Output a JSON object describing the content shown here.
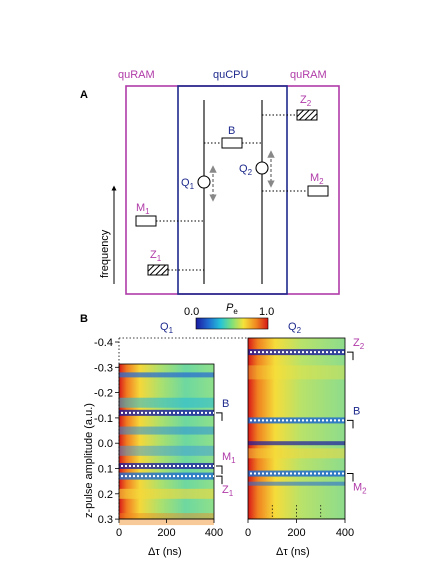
{
  "panel_a": {
    "label": "A",
    "header_left": "quRAM",
    "header_center": "quCPU",
    "header_right": "quRAM",
    "axis_label": "frequency",
    "elements": {
      "z2": "Z",
      "z2_sub": "2",
      "b": "B",
      "q1": "Q",
      "q1_sub": "1",
      "q2": "Q",
      "q2_sub": "2",
      "m2": "M",
      "m2_sub": "2",
      "m1": "M",
      "m1_sub": "1",
      "z1": "Z",
      "z1_sub": "1"
    },
    "colors": {
      "quram": "#b03aa8",
      "qucpu": "#1e2a8c"
    }
  },
  "panel_b": {
    "label": "B",
    "colorbar": {
      "min": "0.0",
      "max": "1.0",
      "label": "P",
      "label_sub": "e",
      "colormap": [
        "#1a1aa0",
        "#1f6ad0",
        "#25c3d8",
        "#7fe07a",
        "#f5e23a",
        "#f08a20",
        "#d61818"
      ]
    },
    "ylabel": "z-pulse amplitude (a.u.)",
    "xlabel": "Δτ (ns)",
    "left_title": "Q",
    "left_title_sub": "1",
    "right_title": "Q",
    "right_title_sub": "2",
    "yticks": [
      "-0.4",
      "-0.3",
      "-0.2",
      "-0.1",
      "0.0",
      "0.1",
      "0.2",
      "0.3"
    ],
    "xticks_left": [
      "0",
      "200",
      "400"
    ],
    "xticks_right": [
      "0",
      "200",
      "400"
    ],
    "markers_left": [
      {
        "text": "B",
        "sub": "",
        "value": -0.12
      },
      {
        "text": "M",
        "sub": "1",
        "value": 0.09
      },
      {
        "text": "Z",
        "sub": "1",
        "value": 0.13
      }
    ],
    "markers_right": [
      {
        "text": "Z",
        "sub": "2",
        "value": -0.36
      },
      {
        "text": "B",
        "sub": "",
        "value": -0.09
      },
      {
        "text": "M",
        "sub": "2",
        "value": 0.12
      }
    ],
    "left_amplitude_range": [
      -0.28,
      0.37
    ],
    "right_amplitude_range": [
      -0.37,
      0.37
    ]
  }
}
